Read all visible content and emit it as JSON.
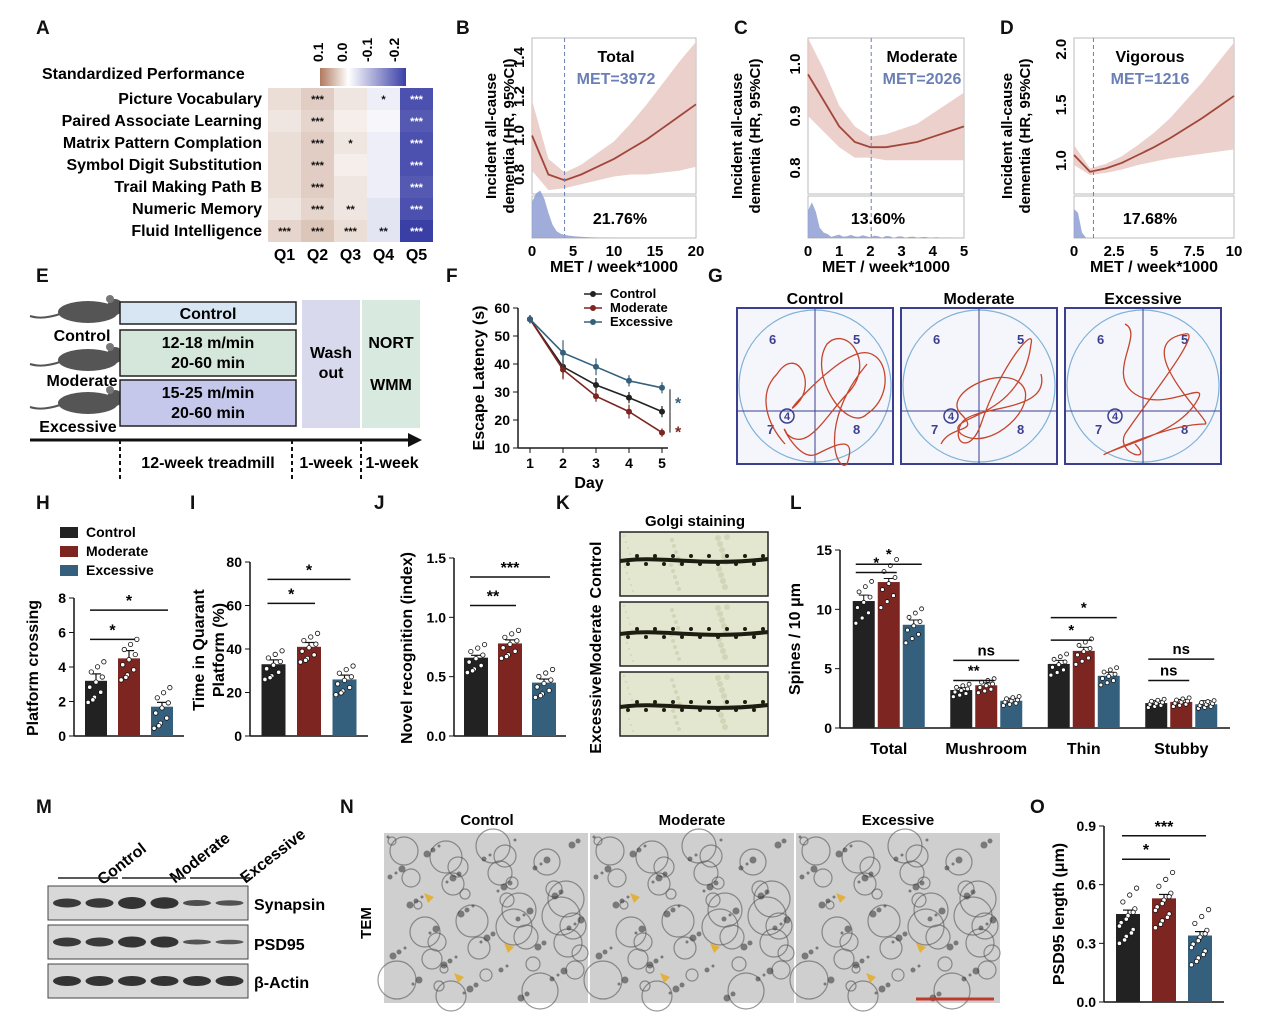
{
  "figure": {
    "panel_labels": [
      "A",
      "B",
      "C",
      "D",
      "E",
      "F",
      "G",
      "H",
      "I",
      "J",
      "K",
      "L",
      "M",
      "N",
      "O"
    ]
  },
  "panel_A": {
    "title": "Standardized Performance",
    "legend_ticks": [
      "0.1",
      "0.0",
      "-0.1",
      "-0.2"
    ],
    "columns": [
      "Q1",
      "Q2",
      "Q3",
      "Q4",
      "Q5"
    ],
    "rows": [
      {
        "label": "Picture Vocabulary",
        "stars": [
          "",
          "***",
          "",
          "*",
          "***"
        ]
      },
      {
        "label": "Paired Associate Learning",
        "stars": [
          "",
          "***",
          "",
          "",
          "***"
        ]
      },
      {
        "label": "Matrix Pattern Complation",
        "stars": [
          "",
          "***",
          "*",
          "",
          "***"
        ]
      },
      {
        "label": "Symbol Digit Substitution",
        "stars": [
          "",
          "***",
          "",
          "",
          "***"
        ]
      },
      {
        "label": "Trail Making Path B",
        "stars": [
          "",
          "***",
          "",
          "",
          "***"
        ]
      },
      {
        "label": "Numeric Memory",
        "stars": [
          "",
          "***",
          "**",
          "",
          "***"
        ]
      },
      {
        "label": "Fluid Intelligence",
        "stars": [
          "***",
          "***",
          "***",
          "**",
          "***"
        ]
      }
    ],
    "values": [
      [
        0.04,
        0.06,
        0.03,
        -0.02,
        -0.2
      ],
      [
        0.03,
        0.05,
        0.02,
        -0.01,
        -0.19
      ],
      [
        0.04,
        0.06,
        0.03,
        -0.02,
        -0.2
      ],
      [
        0.04,
        0.06,
        0.02,
        -0.02,
        -0.2
      ],
      [
        0.04,
        0.06,
        0.03,
        -0.02,
        -0.19
      ],
      [
        0.03,
        0.05,
        0.03,
        -0.03,
        -0.2
      ],
      [
        0.05,
        0.07,
        0.04,
        -0.03,
        -0.22
      ]
    ],
    "colors": {
      "positive": "#b07a5e",
      "neutral": "#ffffff",
      "negative": "#3a3fa6"
    }
  },
  "hr_axis_label": "Incident all-cause dementia (HR, 95%CI)",
  "hr_xlabel": "MET / week*1000",
  "panel_B": {
    "name": "Total",
    "met": "MET=3972",
    "pct": "21.76%",
    "xticks": [
      "0",
      "5",
      "10",
      "15",
      "20"
    ],
    "yticks": [
      "0.8",
      "1.0",
      "1.2",
      "1.4"
    ]
  },
  "panel_C": {
    "name": "Moderate",
    "met": "MET=2026",
    "pct": "13.60%",
    "xticks": [
      "0",
      "1",
      "2",
      "3",
      "4",
      "5"
    ],
    "yticks": [
      "0.8",
      "0.9",
      "1.0"
    ]
  },
  "panel_D": {
    "name": "Vigorous",
    "met": "MET=1216",
    "pct": "17.68%",
    "xticks": [
      "0",
      "2.5",
      "5",
      "7.5",
      "10"
    ],
    "yticks": [
      "1.0",
      "1.5",
      "2.0"
    ]
  },
  "panel_E": {
    "groups": [
      "Control",
      "Moderate",
      "Excessive"
    ],
    "protocols": [
      "Control",
      "12-18 m/min",
      "20-60 min",
      "15-25 m/min",
      "20-60 min"
    ],
    "washout": [
      "Wash",
      "out"
    ],
    "tests": [
      "NORT",
      "WMM"
    ],
    "timeline": [
      "12-week treadmill",
      "1-week",
      "1-week"
    ]
  },
  "legend": {
    "control": "Control",
    "moderate": "Moderate",
    "excessive": "Excessive"
  },
  "colors": {
    "control": "#222222",
    "moderate": "#7d2521",
    "excessive": "#35607d"
  },
  "panel_F": {
    "ylabel": "Escape Latency (s)",
    "xlabel": "Day",
    "yticks": [
      "10",
      "20",
      "30",
      "40",
      "50",
      "60"
    ],
    "xticks": [
      "1",
      "2",
      "3",
      "4",
      "5"
    ],
    "sig_excessive": "*",
    "sig_moderate": "*"
  },
  "panel_G": {
    "titles": [
      "Control",
      "Moderate",
      "Excessive"
    ],
    "quadrants": [
      "6",
      "5",
      "7",
      "8",
      "4"
    ]
  },
  "panel_H": {
    "ylabel": "Platform crossing",
    "yticks": [
      "0",
      "2",
      "4",
      "6",
      "8"
    ],
    "sig": [
      "*",
      "*"
    ]
  },
  "panel_I": {
    "ylabel1": "Time in Quarant",
    "ylabel2": "Platform (%)",
    "yticks": [
      "0",
      "20",
      "40",
      "60",
      "80"
    ],
    "sig": [
      "*",
      "*"
    ]
  },
  "panel_J": {
    "ylabel": "Novel recognition (index)",
    "yticks": [
      "0.0",
      "0.5",
      "1.0",
      "1.5"
    ],
    "sig": [
      "**",
      "***"
    ]
  },
  "panel_K": {
    "title": "Golgi staining",
    "rows": [
      "Control",
      "Moderate",
      "Excessive"
    ]
  },
  "panel_L": {
    "ylabel": "Spines / 10 μm",
    "yticks": [
      "0",
      "5",
      "10",
      "15"
    ],
    "categories": [
      "Total",
      "Mushroom",
      "Thin",
      "Stubby"
    ],
    "sig": [
      "*",
      "*",
      "**",
      "ns",
      "*",
      "*",
      "ns",
      "ns"
    ]
  },
  "panel_M": {
    "groups": [
      "Control",
      "Moderate",
      "Excessive"
    ],
    "bands": [
      "Synapsin",
      "PSD95",
      "β-Actin"
    ]
  },
  "panel_N": {
    "titles": [
      "Control",
      "Moderate",
      "Excessive"
    ],
    "side": "TEM"
  },
  "panel_O": {
    "ylabel": "PSD95 length (μm)",
    "yticks": [
      "0.0",
      "0.3",
      "0.6",
      "0.9"
    ],
    "sig": [
      "*",
      "***"
    ]
  },
  "chart_data": [
    {
      "type": "line",
      "panel": "F",
      "title": "",
      "xlabel": "Day",
      "ylabel": "Escape Latency (s)",
      "x": [
        1,
        2,
        3,
        4,
        5
      ],
      "ylim": [
        10,
        60
      ],
      "series": [
        {
          "name": "Control",
          "values": [
            56,
            39,
            32.5,
            28,
            23
          ],
          "err": [
            1.5,
            4,
            2.5,
            2,
            2
          ]
        },
        {
          "name": "Moderate",
          "values": [
            56,
            38,
            28.5,
            23,
            15.5
          ],
          "err": [
            1.5,
            3.5,
            2,
            2.5,
            1.5
          ]
        },
        {
          "name": "Excessive",
          "values": [
            56,
            44,
            39,
            34,
            31.5
          ],
          "err": [
            1.5,
            4.5,
            3,
            2,
            2
          ]
        }
      ]
    },
    {
      "type": "bar",
      "panel": "H",
      "ylabel": "Platform crossing",
      "categories": [
        "Control",
        "Moderate",
        "Excessive"
      ],
      "values": [
        3.2,
        4.5,
        1.7
      ],
      "err": [
        0.4,
        0.45,
        0.25
      ],
      "ylim": [
        0,
        8
      ]
    },
    {
      "type": "bar",
      "panel": "I",
      "ylabel": "Time in Quarant Platform (%)",
      "categories": [
        "Control",
        "Moderate",
        "Excessive"
      ],
      "values": [
        33,
        41,
        26
      ],
      "err": [
        2,
        2,
        2
      ],
      "ylim": [
        0,
        80
      ]
    },
    {
      "type": "bar",
      "panel": "J",
      "ylabel": "Novel recognition (index)",
      "categories": [
        "Control",
        "Moderate",
        "Excessive"
      ],
      "values": [
        0.66,
        0.78,
        0.45
      ],
      "err": [
        0.02,
        0.03,
        0.03
      ],
      "ylim": [
        0,
        1.5
      ]
    },
    {
      "type": "bar",
      "panel": "L",
      "ylabel": "Spines / 10 μm",
      "categories": [
        "Total",
        "Mushroom",
        "Thin",
        "Stubby"
      ],
      "ylim": [
        0,
        15
      ],
      "series": [
        {
          "name": "Control",
          "values": [
            10.7,
            3.2,
            5.4,
            2.1
          ],
          "err": [
            0.5,
            0.2,
            0.3,
            0.2
          ]
        },
        {
          "name": "Moderate",
          "values": [
            12.3,
            3.6,
            6.5,
            2.2
          ],
          "err": [
            0.3,
            0.2,
            0.3,
            0.2
          ]
        },
        {
          "name": "Excessive",
          "values": [
            8.7,
            2.3,
            4.4,
            2.0
          ],
          "err": [
            0.4,
            0.2,
            0.3,
            0.3
          ]
        }
      ]
    },
    {
      "type": "bar",
      "panel": "O",
      "ylabel": "PSD95 length (μm)",
      "categories": [
        "Control",
        "Moderate",
        "Excessive"
      ],
      "values": [
        0.45,
        0.53,
        0.34
      ],
      "err": [
        0.02,
        0.02,
        0.02
      ],
      "ylim": [
        0,
        0.9
      ]
    },
    {
      "type": "line",
      "panel": "B",
      "title": "Total",
      "xlabel": "MET / week*1000",
      "x": [
        0,
        2,
        4,
        6,
        8,
        10,
        12,
        14,
        16,
        18,
        20
      ],
      "values": [
        1.0,
        0.8,
        0.77,
        0.8,
        0.84,
        0.88,
        0.93,
        0.98,
        1.04,
        1.1,
        1.16
      ],
      "ylim": [
        0.7,
        1.5
      ]
    },
    {
      "type": "line",
      "panel": "C",
      "title": "Moderate",
      "xlabel": "MET / week*1000",
      "x": [
        0,
        0.5,
        1,
        1.5,
        2,
        2.5,
        3,
        3.5,
        4,
        4.5,
        5
      ],
      "values": [
        0.98,
        0.93,
        0.88,
        0.85,
        0.84,
        0.84,
        0.845,
        0.85,
        0.86,
        0.87,
        0.88
      ],
      "ylim": [
        0.75,
        1.05
      ]
    },
    {
      "type": "line",
      "panel": "D",
      "title": "Vigorous",
      "xlabel": "MET / week*1000",
      "x": [
        0,
        1,
        2,
        3,
        4,
        5,
        6,
        7,
        8,
        9,
        10
      ],
      "values": [
        1.05,
        0.9,
        0.93,
        0.98,
        1.05,
        1.12,
        1.2,
        1.29,
        1.38,
        1.48,
        1.58
      ],
      "ylim": [
        0.7,
        2.1
      ]
    }
  ]
}
